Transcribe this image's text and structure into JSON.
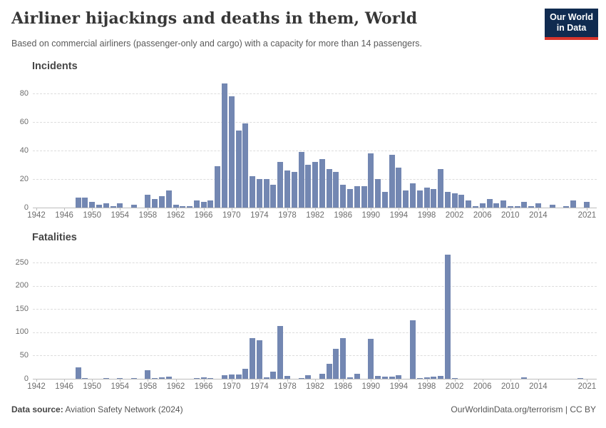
{
  "header": {
    "title": "Airliner hijackings and deaths in them, World",
    "subtitle": "Based on commercial airliners (passenger-only and cargo) with a capacity for more than 14 passengers.",
    "logo": {
      "line1": "Our World",
      "line2": "in Data"
    }
  },
  "footer": {
    "source_label": "Data source:",
    "source_value": "Aviation Safety Network (2024)",
    "right": "OurWorldinData.org/terrorism | CC BY"
  },
  "colors": {
    "bar": "#7387b2",
    "logo_bg": "#102b50",
    "logo_accent": "#d8352c",
    "gridline": "#dcdcdc",
    "axis": "#bdbdbd"
  },
  "chart_data": [
    {
      "type": "bar",
      "title": "Incidents",
      "ylabel": "",
      "xlabel": "",
      "grid": true,
      "ylim": [
        0,
        90
      ],
      "yticks": [
        0,
        20,
        40,
        60,
        80
      ],
      "xticks": [
        1942,
        1946,
        1950,
        1954,
        1958,
        1962,
        1966,
        1970,
        1974,
        1978,
        1982,
        1986,
        1990,
        1994,
        1998,
        2002,
        2006,
        2010,
        2014,
        2021
      ],
      "x": [
        1942,
        1943,
        1944,
        1945,
        1946,
        1947,
        1948,
        1949,
        1950,
        1951,
        1952,
        1953,
        1954,
        1955,
        1956,
        1957,
        1958,
        1959,
        1960,
        1961,
        1962,
        1963,
        1964,
        1965,
        1966,
        1967,
        1968,
        1969,
        1970,
        1971,
        1972,
        1973,
        1974,
        1975,
        1976,
        1977,
        1978,
        1979,
        1980,
        1981,
        1982,
        1983,
        1984,
        1985,
        1986,
        1987,
        1988,
        1989,
        1990,
        1991,
        1992,
        1993,
        1994,
        1995,
        1996,
        1997,
        1998,
        1999,
        2000,
        2001,
        2002,
        2003,
        2004,
        2005,
        2006,
        2007,
        2008,
        2009,
        2010,
        2011,
        2012,
        2013,
        2014,
        2015,
        2016,
        2017,
        2018,
        2019,
        2020,
        2021
      ],
      "values": [
        0,
        0,
        0,
        0,
        0,
        0,
        7,
        7,
        4,
        2,
        3,
        1,
        3,
        0,
        2,
        0,
        9,
        6,
        8,
        12,
        2,
        1,
        1,
        5,
        4,
        5,
        29,
        87,
        78,
        54,
        59,
        22,
        20,
        20,
        16,
        32,
        26,
        25,
        39,
        30,
        32,
        34,
        27,
        25,
        16,
        13,
        15,
        15,
        38,
        20,
        11,
        37,
        28,
        12,
        17,
        12,
        14,
        13,
        27,
        11,
        10,
        9,
        5,
        1,
        3,
        6,
        3,
        5,
        1,
        1,
        4,
        1,
        3,
        0,
        2,
        0,
        1,
        5,
        0,
        4
      ]
    },
    {
      "type": "bar",
      "title": "Fatalities",
      "ylabel": "",
      "xlabel": "",
      "grid": true,
      "ylim": [
        0,
        270
      ],
      "yticks": [
        0,
        50,
        100,
        150,
        200,
        250
      ],
      "xticks": [
        1942,
        1946,
        1950,
        1954,
        1958,
        1962,
        1966,
        1970,
        1974,
        1978,
        1982,
        1986,
        1990,
        1994,
        1998,
        2002,
        2006,
        2010,
        2014,
        2021
      ],
      "x": [
        1942,
        1943,
        1944,
        1945,
        1946,
        1947,
        1948,
        1949,
        1950,
        1951,
        1952,
        1953,
        1954,
        1955,
        1956,
        1957,
        1958,
        1959,
        1960,
        1961,
        1962,
        1963,
        1964,
        1965,
        1966,
        1967,
        1968,
        1969,
        1970,
        1971,
        1972,
        1973,
        1974,
        1975,
        1976,
        1977,
        1978,
        1979,
        1980,
        1981,
        1982,
        1983,
        1984,
        1985,
        1986,
        1987,
        1988,
        1989,
        1990,
        1991,
        1992,
        1993,
        1994,
        1995,
        1996,
        1997,
        1998,
        1999,
        2000,
        2001,
        2002,
        2003,
        2004,
        2005,
        2006,
        2007,
        2008,
        2009,
        2010,
        2011,
        2012,
        2013,
        2014,
        2015,
        2016,
        2017,
        2018,
        2019,
        2020,
        2021
      ],
      "values": [
        0,
        0,
        0,
        0,
        0,
        0,
        25,
        1,
        0,
        0,
        2,
        0,
        2,
        0,
        1,
        0,
        18,
        1,
        3,
        4,
        0,
        0,
        0,
        1,
        3,
        2,
        0,
        7,
        9,
        9,
        22,
        87,
        83,
        3,
        16,
        114,
        6,
        0,
        1,
        7,
        0,
        10,
        32,
        65,
        87,
        3,
        11,
        0,
        86,
        6,
        4,
        4,
        8,
        0,
        125,
        2,
        3,
        4,
        6,
        267,
        2,
        0,
        0,
        0,
        0,
        0,
        0,
        0,
        0,
        0,
        3,
        0,
        0,
        0,
        0,
        0,
        0,
        0,
        1,
        0
      ]
    }
  ]
}
